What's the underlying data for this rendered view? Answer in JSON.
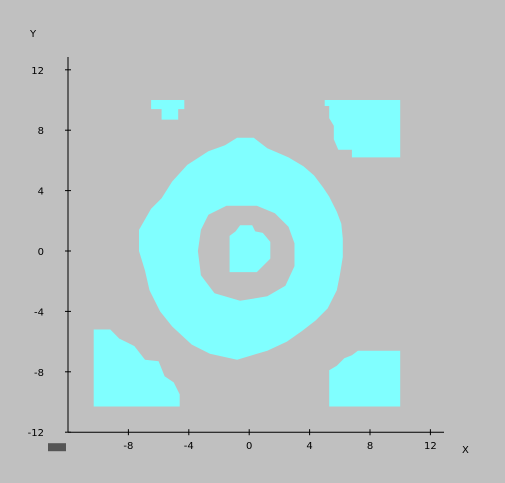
{
  "window": {
    "background": "#c0c0c0"
  },
  "chart_data": {
    "type": "heatmap",
    "title": "",
    "xlabel": "X",
    "ylabel": "Y",
    "xlim": [
      -12,
      12
    ],
    "ylim": [
      -12,
      12
    ],
    "x_ticks": [
      -8,
      -4,
      0,
      4,
      8,
      12
    ],
    "y_ticks": [
      -12,
      -8,
      -4,
      0,
      4,
      8,
      12
    ],
    "fill_color": "#80ffff",
    "axis_color": "#000000",
    "grid": false,
    "origin_marker_color": "#555555",
    "regions": [
      {
        "name": "outer-ring",
        "outer": [
          [
            -0.8,
            7.5
          ],
          [
            0.3,
            7.5
          ],
          [
            1.2,
            6.8
          ],
          [
            2.6,
            6.2
          ],
          [
            3.6,
            5.6
          ],
          [
            4.3,
            5.0
          ],
          [
            4.9,
            4.2
          ],
          [
            5.3,
            3.6
          ],
          [
            5.8,
            2.6
          ],
          [
            6.1,
            1.8
          ],
          [
            6.2,
            0.8
          ],
          [
            6.2,
            -0.4
          ],
          [
            6.0,
            -1.6
          ],
          [
            5.8,
            -2.6
          ],
          [
            5.2,
            -3.8
          ],
          [
            4.4,
            -4.6
          ],
          [
            3.5,
            -5.3
          ],
          [
            2.5,
            -6.0
          ],
          [
            1.2,
            -6.6
          ],
          [
            -0.8,
            -7.2
          ],
          [
            -2.6,
            -6.8
          ],
          [
            -3.8,
            -6.2
          ],
          [
            -5.1,
            -5.0
          ],
          [
            -5.9,
            -4.0
          ],
          [
            -6.6,
            -2.6
          ],
          [
            -6.9,
            -1.3
          ],
          [
            -7.3,
            0.0
          ],
          [
            -7.3,
            1.4
          ],
          [
            -6.5,
            2.8
          ],
          [
            -5.8,
            3.5
          ],
          [
            -5.1,
            4.6
          ],
          [
            -4.1,
            5.7
          ],
          [
            -2.7,
            6.6
          ],
          [
            -1.6,
            7.0
          ]
        ],
        "hole": [
          [
            -1.5,
            3.0
          ],
          [
            0.5,
            3.0
          ],
          [
            1.7,
            2.5
          ],
          [
            2.6,
            1.6
          ],
          [
            3.0,
            0.5
          ],
          [
            3.0,
            -1.0
          ],
          [
            2.4,
            -2.3
          ],
          [
            1.2,
            -3.0
          ],
          [
            -0.6,
            -3.3
          ],
          [
            -2.3,
            -2.8
          ],
          [
            -3.2,
            -1.6
          ],
          [
            -3.4,
            0.0
          ],
          [
            -3.2,
            1.4
          ],
          [
            -2.7,
            2.4
          ]
        ]
      },
      {
        "name": "inner-blob",
        "outer": [
          [
            -0.6,
            1.7
          ],
          [
            0.2,
            1.7
          ],
          [
            0.4,
            1.3
          ],
          [
            0.9,
            1.2
          ],
          [
            1.4,
            0.6
          ],
          [
            1.4,
            -0.5
          ],
          [
            0.9,
            -1.0
          ],
          [
            0.5,
            -1.4
          ],
          [
            -1.3,
            -1.4
          ],
          [
            -1.3,
            1.0
          ],
          [
            -0.9,
            1.3
          ]
        ]
      },
      {
        "name": "top-left-blob",
        "outer": [
          [
            -6.5,
            10.0
          ],
          [
            -4.3,
            10.0
          ],
          [
            -4.3,
            9.4
          ],
          [
            -4.7,
            9.4
          ],
          [
            -4.7,
            8.7
          ],
          [
            -5.8,
            8.7
          ],
          [
            -5.8,
            9.4
          ],
          [
            -6.5,
            9.4
          ]
        ]
      },
      {
        "name": "top-right-corner",
        "outer": [
          [
            5.0,
            10.0
          ],
          [
            10.0,
            10.0
          ],
          [
            10.0,
            6.2
          ],
          [
            6.8,
            6.2
          ],
          [
            6.8,
            6.7
          ],
          [
            5.9,
            6.7
          ],
          [
            5.6,
            7.4
          ],
          [
            5.6,
            8.3
          ],
          [
            5.3,
            8.8
          ],
          [
            5.3,
            9.6
          ],
          [
            5.0,
            9.6
          ]
        ]
      },
      {
        "name": "bottom-left-corner",
        "outer": [
          [
            -10.3,
            -5.2
          ],
          [
            -9.2,
            -5.2
          ],
          [
            -8.6,
            -5.8
          ],
          [
            -7.6,
            -6.3
          ],
          [
            -6.9,
            -7.2
          ],
          [
            -6.0,
            -7.3
          ],
          [
            -5.6,
            -8.3
          ],
          [
            -5.0,
            -8.7
          ],
          [
            -4.6,
            -9.5
          ],
          [
            -4.6,
            -10.3
          ],
          [
            -10.3,
            -10.3
          ]
        ]
      },
      {
        "name": "bottom-right-corner",
        "outer": [
          [
            7.2,
            -6.6
          ],
          [
            10.0,
            -6.6
          ],
          [
            10.0,
            -10.3
          ],
          [
            5.3,
            -10.3
          ],
          [
            5.3,
            -7.9
          ],
          [
            5.8,
            -7.6
          ],
          [
            6.3,
            -7.1
          ],
          [
            6.8,
            -6.9
          ]
        ]
      }
    ]
  }
}
